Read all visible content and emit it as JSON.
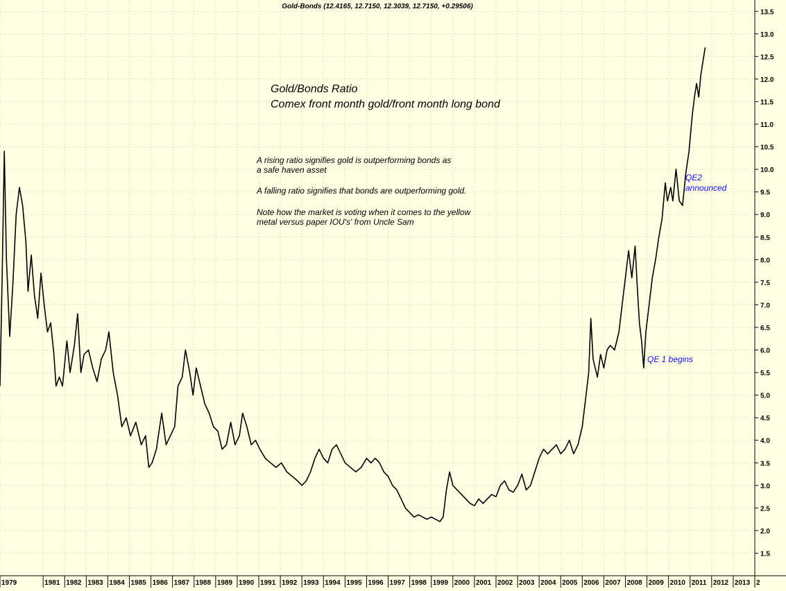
{
  "header": "Gold-Bonds (12.4165, 12.7150, 12.3039, 12.7150, +0.29506)",
  "titles": {
    "line1": "Gold/Bonds Ratio",
    "line2": "Comex front month gold/front month long bond"
  },
  "notes": {
    "p1a": "A rising ratio signifies gold is outperforming bonds as",
    "p1b": "a safe haven asset",
    "p2": "A falling ratio signifies that bonds are outperforming gold.",
    "p3a": "Note how the market is voting when it comes to the yellow",
    "p3b": "metal versus paper IOU's' from Uncle Sam"
  },
  "annotations": {
    "qe2_line1": "QE2",
    "qe2_line2": "announced",
    "qe1": "QE 1 begins"
  },
  "colors": {
    "background": "#ffffe3",
    "line": "#000000",
    "grid": "#c8c8c8",
    "annotation": "#1010e0"
  },
  "chart_data": {
    "type": "line",
    "title": "Gold/Bonds Ratio",
    "subtitle": "Comex front month gold/front month long bond",
    "grid": true,
    "y_axis_side": "right",
    "ylim": [
      1.0,
      13.75
    ],
    "y_ticks": [
      "1.5",
      "2.0",
      "2.5",
      "3.0",
      "3.5",
      "4.0",
      "4.5",
      "5.0",
      "5.5",
      "6.0",
      "6.5",
      "7.0",
      "7.5",
      "8.0",
      "8.5",
      "9.0",
      "9.5",
      "10.0",
      "10.5",
      "11.0",
      "11.5",
      "12.0",
      "12.5",
      "13.0",
      "13.5"
    ],
    "xlim": [
      1979.0,
      2014.0
    ],
    "x_ticks": [
      {
        "year": 1979,
        "label": "1979"
      },
      {
        "year": 1981,
        "label": "1981"
      },
      {
        "year": 1982,
        "label": "1982"
      },
      {
        "year": 1983,
        "label": "1983"
      },
      {
        "year": 1984,
        "label": "1984"
      },
      {
        "year": 1985,
        "label": "1985"
      },
      {
        "year": 1986,
        "label": "1986"
      },
      {
        "year": 1987,
        "label": "1987"
      },
      {
        "year": 1988,
        "label": "1988"
      },
      {
        "year": 1989,
        "label": "1989"
      },
      {
        "year": 1990,
        "label": "1990"
      },
      {
        "year": 1991,
        "label": "1991"
      },
      {
        "year": 1992,
        "label": "1992"
      },
      {
        "year": 1993,
        "label": "1993"
      },
      {
        "year": 1994,
        "label": "1994"
      },
      {
        "year": 1995,
        "label": "1995"
      },
      {
        "year": 1996,
        "label": "1996"
      },
      {
        "year": 1997,
        "label": "1997"
      },
      {
        "year": 1998,
        "label": "1998"
      },
      {
        "year": 1999,
        "label": "1999"
      },
      {
        "year": 2000,
        "label": "2000"
      },
      {
        "year": 2001,
        "label": "2001"
      },
      {
        "year": 2002,
        "label": "2002"
      },
      {
        "year": 2003,
        "label": "2003"
      },
      {
        "year": 2004,
        "label": "2004"
      },
      {
        "year": 2005,
        "label": "2005"
      },
      {
        "year": 2006,
        "label": "2006"
      },
      {
        "year": 2007,
        "label": "2007"
      },
      {
        "year": 2008,
        "label": "2008"
      },
      {
        "year": 2009,
        "label": "2009"
      },
      {
        "year": 2010,
        "label": "2010"
      },
      {
        "year": 2011,
        "label": "2011"
      },
      {
        "year": 2012,
        "label": "2012"
      },
      {
        "year": 2013,
        "label": "2013"
      },
      {
        "year": 2014,
        "label": "2"
      }
    ],
    "series": [
      {
        "name": "",
        "points": [
          [
            1979.0,
            5.2
          ],
          [
            1979.1,
            7.6
          ],
          [
            1979.2,
            10.4
          ],
          [
            1979.3,
            8.0
          ],
          [
            1979.45,
            6.3
          ],
          [
            1979.6,
            7.5
          ],
          [
            1979.75,
            9.0
          ],
          [
            1979.9,
            9.6
          ],
          [
            1980.05,
            9.2
          ],
          [
            1980.2,
            8.4
          ],
          [
            1980.3,
            7.3
          ],
          [
            1980.45,
            8.1
          ],
          [
            1980.6,
            7.2
          ],
          [
            1980.75,
            6.7
          ],
          [
            1980.9,
            7.7
          ],
          [
            1981.05,
            7.0
          ],
          [
            1981.2,
            6.4
          ],
          [
            1981.35,
            6.6
          ],
          [
            1981.5,
            5.9
          ],
          [
            1981.6,
            5.2
          ],
          [
            1981.75,
            5.4
          ],
          [
            1981.9,
            5.2
          ],
          [
            1982.1,
            6.2
          ],
          [
            1982.25,
            5.5
          ],
          [
            1982.45,
            6.1
          ],
          [
            1982.6,
            6.8
          ],
          [
            1982.75,
            5.5
          ],
          [
            1982.9,
            5.9
          ],
          [
            1983.1,
            6.0
          ],
          [
            1983.3,
            5.6
          ],
          [
            1983.5,
            5.3
          ],
          [
            1983.7,
            5.8
          ],
          [
            1983.9,
            6.0
          ],
          [
            1984.05,
            6.4
          ],
          [
            1984.25,
            5.5
          ],
          [
            1984.45,
            5.0
          ],
          [
            1984.65,
            4.3
          ],
          [
            1984.85,
            4.5
          ],
          [
            1985.05,
            4.1
          ],
          [
            1985.3,
            4.4
          ],
          [
            1985.55,
            3.9
          ],
          [
            1985.75,
            4.1
          ],
          [
            1985.9,
            3.4
          ],
          [
            1986.05,
            3.5
          ],
          [
            1986.25,
            3.8
          ],
          [
            1986.5,
            4.6
          ],
          [
            1986.7,
            3.9
          ],
          [
            1986.9,
            4.1
          ],
          [
            1987.1,
            4.3
          ],
          [
            1987.25,
            5.2
          ],
          [
            1987.45,
            5.4
          ],
          [
            1987.6,
            6.0
          ],
          [
            1987.8,
            5.5
          ],
          [
            1987.95,
            5.0
          ],
          [
            1988.1,
            5.6
          ],
          [
            1988.3,
            5.2
          ],
          [
            1988.5,
            4.8
          ],
          [
            1988.7,
            4.6
          ],
          [
            1988.9,
            4.3
          ],
          [
            1989.1,
            4.2
          ],
          [
            1989.3,
            3.8
          ],
          [
            1989.5,
            3.9
          ],
          [
            1989.7,
            4.4
          ],
          [
            1989.9,
            3.9
          ],
          [
            1990.1,
            4.1
          ],
          [
            1990.25,
            4.6
          ],
          [
            1990.45,
            4.3
          ],
          [
            1990.65,
            3.9
          ],
          [
            1990.85,
            4.0
          ],
          [
            1991.05,
            3.8
          ],
          [
            1991.3,
            3.6
          ],
          [
            1991.55,
            3.5
          ],
          [
            1991.8,
            3.4
          ],
          [
            1992.05,
            3.5
          ],
          [
            1992.3,
            3.3
          ],
          [
            1992.55,
            3.2
          ],
          [
            1992.8,
            3.1
          ],
          [
            1993.0,
            3.0
          ],
          [
            1993.2,
            3.1
          ],
          [
            1993.4,
            3.3
          ],
          [
            1993.6,
            3.6
          ],
          [
            1993.8,
            3.8
          ],
          [
            1994.0,
            3.6
          ],
          [
            1994.2,
            3.5
          ],
          [
            1994.4,
            3.8
          ],
          [
            1994.6,
            3.9
          ],
          [
            1994.8,
            3.7
          ],
          [
            1995.0,
            3.5
          ],
          [
            1995.25,
            3.4
          ],
          [
            1995.5,
            3.3
          ],
          [
            1995.75,
            3.4
          ],
          [
            1996.0,
            3.6
          ],
          [
            1996.2,
            3.5
          ],
          [
            1996.4,
            3.6
          ],
          [
            1996.6,
            3.5
          ],
          [
            1996.8,
            3.3
          ],
          [
            1997.0,
            3.2
          ],
          [
            1997.2,
            3.0
          ],
          [
            1997.4,
            2.9
          ],
          [
            1997.6,
            2.7
          ],
          [
            1997.8,
            2.5
          ],
          [
            1998.0,
            2.4
          ],
          [
            1998.2,
            2.3
          ],
          [
            1998.4,
            2.35
          ],
          [
            1998.6,
            2.3
          ],
          [
            1998.8,
            2.25
          ],
          [
            1999.0,
            2.3
          ],
          [
            1999.2,
            2.25
          ],
          [
            1999.4,
            2.2
          ],
          [
            1999.55,
            2.3
          ],
          [
            1999.7,
            2.9
          ],
          [
            1999.85,
            3.3
          ],
          [
            2000.0,
            3.0
          ],
          [
            2000.2,
            2.9
          ],
          [
            2000.4,
            2.8
          ],
          [
            2000.6,
            2.7
          ],
          [
            2000.8,
            2.6
          ],
          [
            2001.0,
            2.55
          ],
          [
            2001.2,
            2.7
          ],
          [
            2001.4,
            2.6
          ],
          [
            2001.6,
            2.7
          ],
          [
            2001.8,
            2.8
          ],
          [
            2002.0,
            2.75
          ],
          [
            2002.2,
            3.0
          ],
          [
            2002.4,
            3.1
          ],
          [
            2002.6,
            2.9
          ],
          [
            2002.8,
            2.85
          ],
          [
            2003.0,
            3.0
          ],
          [
            2003.2,
            3.25
          ],
          [
            2003.4,
            2.9
          ],
          [
            2003.6,
            3.0
          ],
          [
            2003.8,
            3.3
          ],
          [
            2004.0,
            3.6
          ],
          [
            2004.2,
            3.8
          ],
          [
            2004.4,
            3.7
          ],
          [
            2004.6,
            3.8
          ],
          [
            2004.8,
            3.9
          ],
          [
            2005.0,
            3.7
          ],
          [
            2005.2,
            3.8
          ],
          [
            2005.4,
            4.0
          ],
          [
            2005.6,
            3.7
          ],
          [
            2005.8,
            3.9
          ],
          [
            2006.0,
            4.3
          ],
          [
            2006.15,
            4.9
          ],
          [
            2006.3,
            5.5
          ],
          [
            2006.4,
            6.7
          ],
          [
            2006.5,
            5.8
          ],
          [
            2006.7,
            5.4
          ],
          [
            2006.85,
            5.9
          ],
          [
            2007.0,
            5.6
          ],
          [
            2007.15,
            6.0
          ],
          [
            2007.3,
            6.1
          ],
          [
            2007.5,
            6.0
          ],
          [
            2007.7,
            6.4
          ],
          [
            2007.85,
            7.0
          ],
          [
            2008.0,
            7.6
          ],
          [
            2008.15,
            8.2
          ],
          [
            2008.3,
            7.6
          ],
          [
            2008.45,
            8.3
          ],
          [
            2008.55,
            7.4
          ],
          [
            2008.65,
            6.6
          ],
          [
            2008.75,
            6.2
          ],
          [
            2008.85,
            5.6
          ],
          [
            2008.95,
            6.4
          ],
          [
            2009.1,
            7.0
          ],
          [
            2009.25,
            7.6
          ],
          [
            2009.4,
            8.0
          ],
          [
            2009.55,
            8.5
          ],
          [
            2009.7,
            8.9
          ],
          [
            2009.85,
            9.7
          ],
          [
            2009.95,
            9.3
          ],
          [
            2010.1,
            9.6
          ],
          [
            2010.2,
            9.3
          ],
          [
            2010.35,
            10.0
          ],
          [
            2010.5,
            9.3
          ],
          [
            2010.65,
            9.2
          ],
          [
            2010.8,
            9.9
          ],
          [
            2010.95,
            10.4
          ],
          [
            2011.1,
            11.2
          ],
          [
            2011.2,
            11.6
          ],
          [
            2011.3,
            11.9
          ],
          [
            2011.4,
            11.6
          ],
          [
            2011.5,
            12.1
          ],
          [
            2011.6,
            12.4
          ],
          [
            2011.7,
            12.7
          ]
        ]
      }
    ],
    "annotations": [
      {
        "text": "QE2 announced"
      },
      {
        "text": "QE 1 begins"
      }
    ]
  }
}
